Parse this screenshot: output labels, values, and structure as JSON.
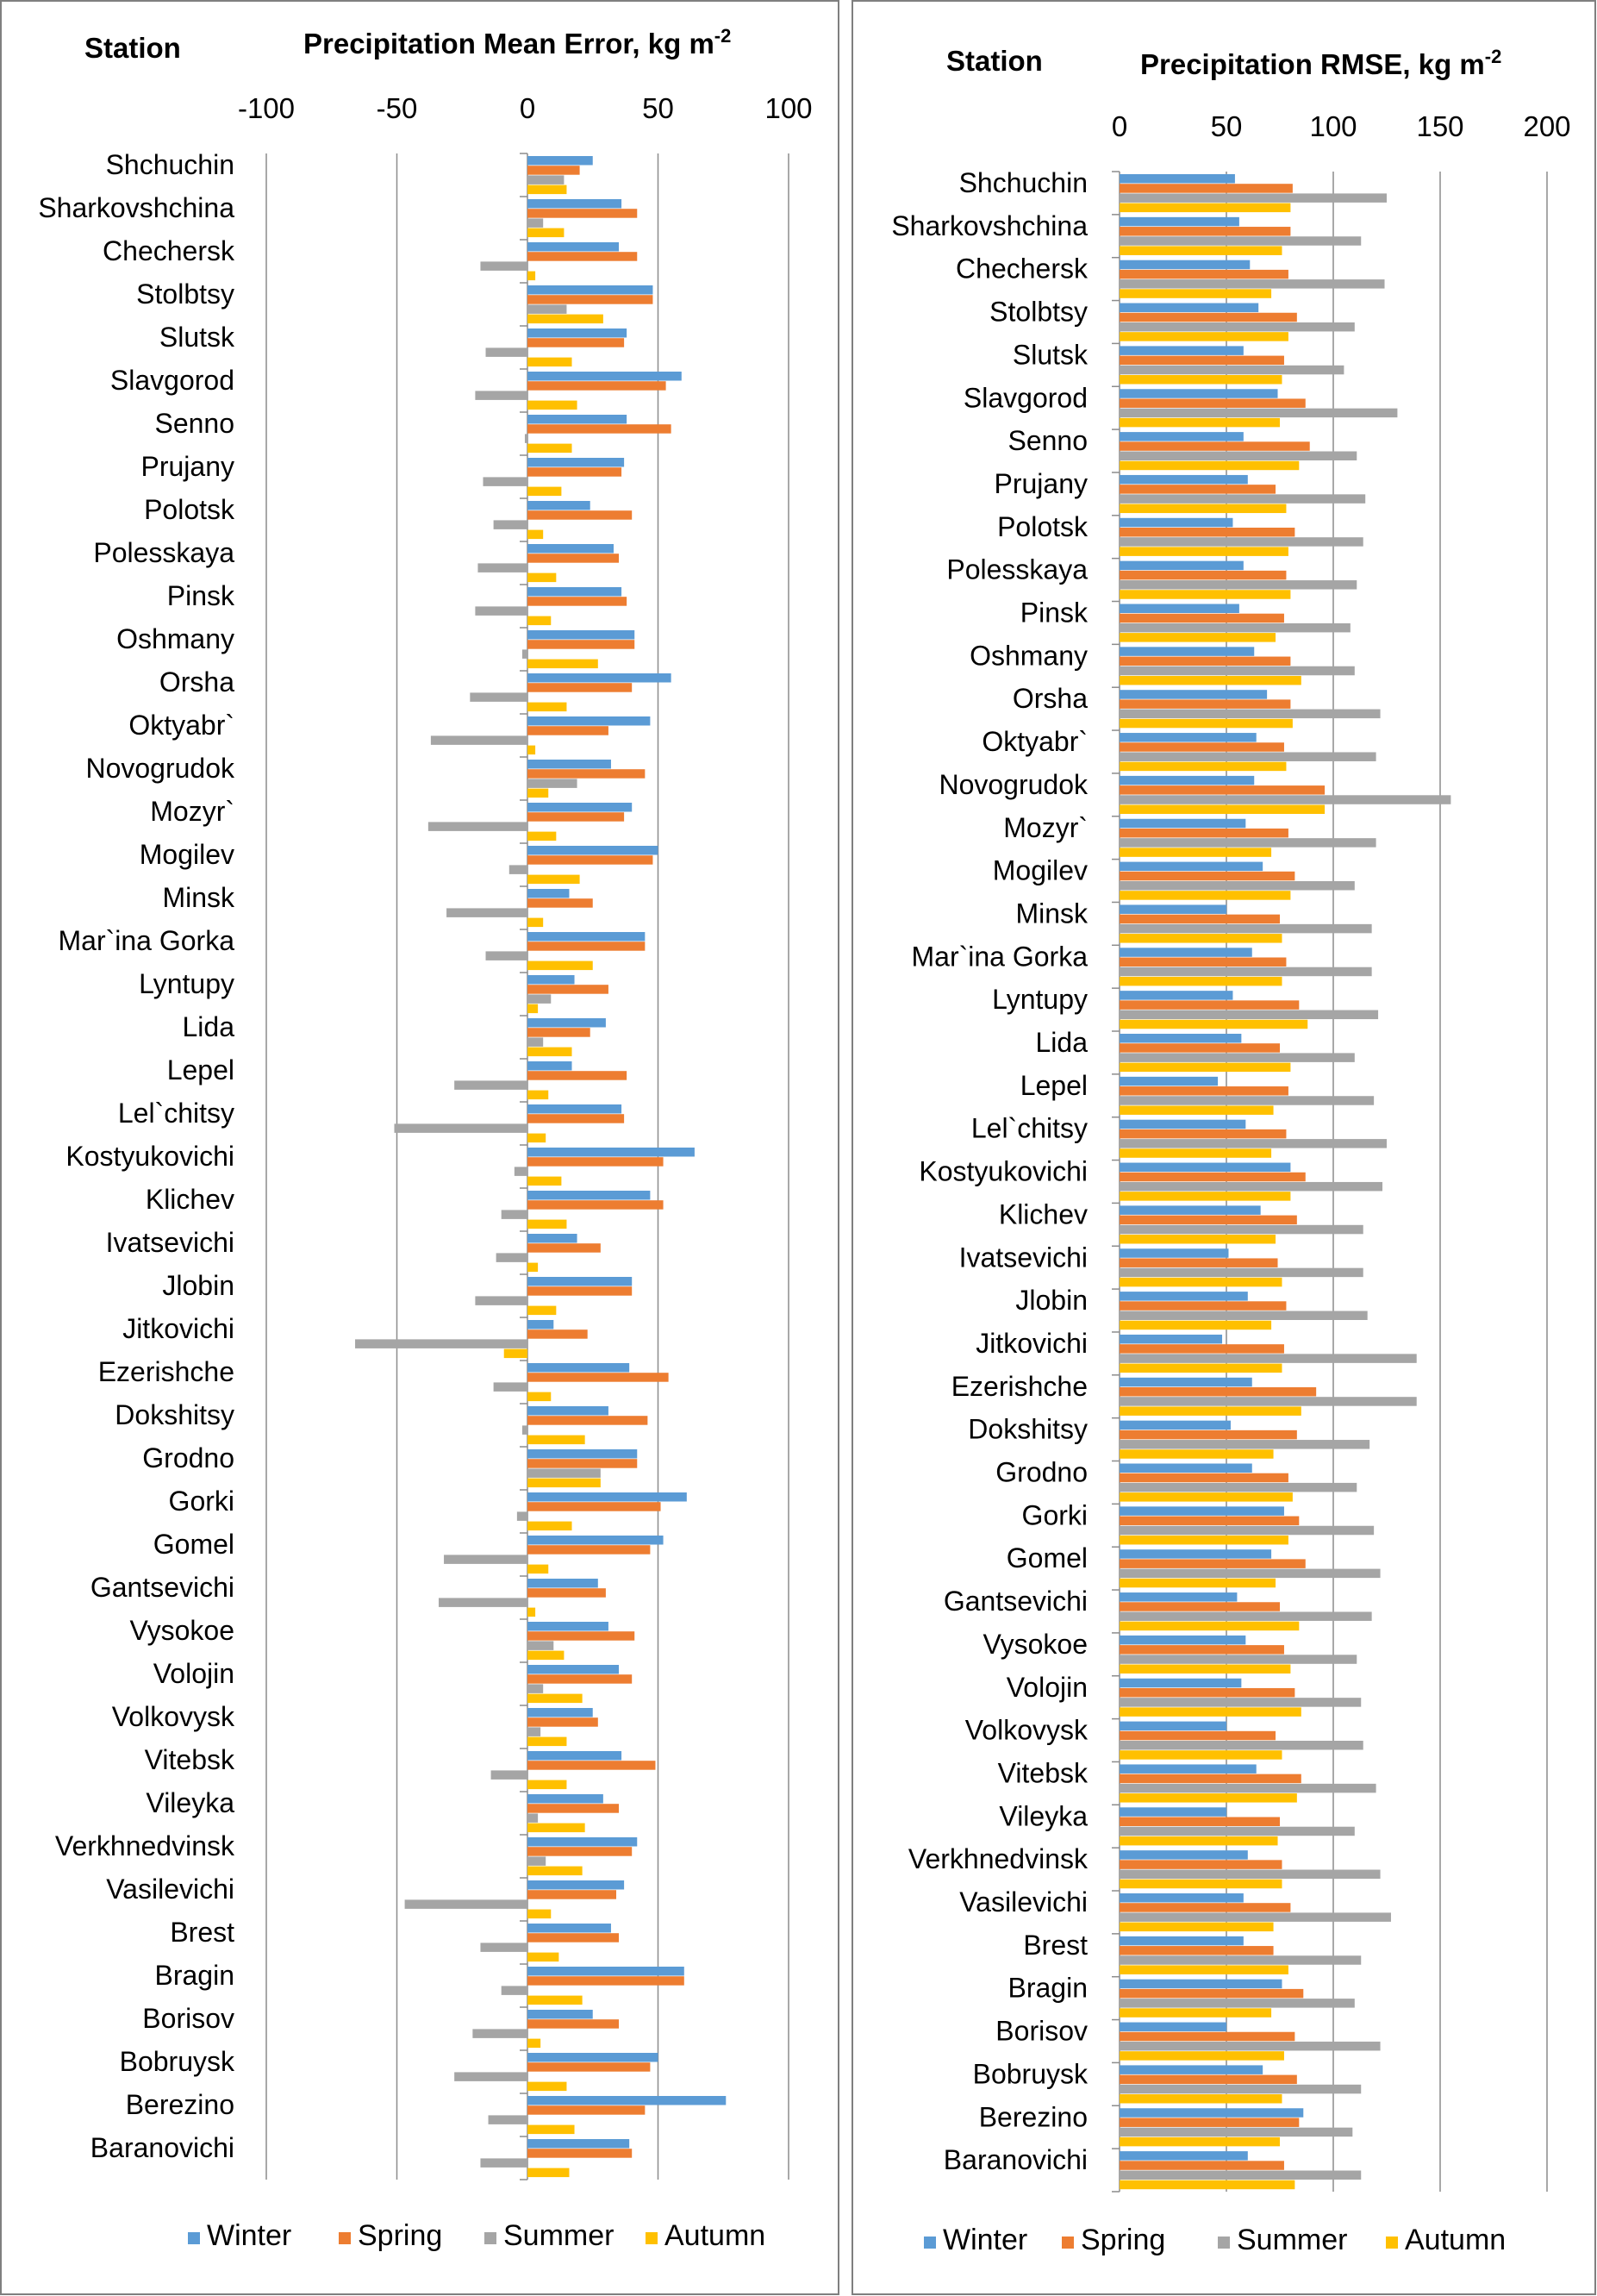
{
  "colors": {
    "Winter": "#5b9bd5",
    "Spring": "#ed7d31",
    "Summer": "#a5a5a5",
    "Autumn": "#ffc000"
  },
  "chart_data": [
    {
      "type": "bar",
      "orientation": "horizontal",
      "station_header": "Station",
      "title": "Precipitation Mean Error, kg m",
      "title_sup": "-2",
      "xlim": [
        -100,
        100
      ],
      "ticks": [
        "-100",
        "-50",
        "0",
        "50",
        "100"
      ],
      "tick_values": [
        -100,
        -50,
        0,
        50,
        100
      ],
      "grid": true,
      "legend_position": "bottom",
      "categories": [
        "Shchuchin",
        "Sharkovshchina",
        "Chechersk",
        "Stolbtsy",
        "Slutsk",
        "Slavgorod",
        "Senno",
        "Prujany",
        "Polotsk",
        "Polesskaya",
        "Pinsk",
        "Oshmany",
        "Orsha",
        "Oktyabr`",
        "Novogrudok",
        "Mozyr`",
        "Mogilev",
        "Minsk",
        "Mar`ina Gorka",
        "Lyntupy",
        "Lida",
        "Lepel",
        "Lel`chitsy",
        "Kostyukovichi",
        "Klichev",
        "Ivatsevichi",
        "Jlobin",
        "Jitkovichi",
        "Ezerishche",
        "Dokshitsy",
        "Grodno",
        "Gorki",
        "Gomel",
        "Gantsevichi",
        "Vysokoe",
        "Volojin",
        "Volkovysk",
        "Vitebsk",
        "Vileyka",
        "Verkhnedvinsk",
        "Vasilevichi",
        "Brest",
        "Bragin",
        "Borisov",
        "Bobruysk",
        "Berezino",
        "Baranovichi"
      ],
      "series": [
        {
          "name": "Winter",
          "values": [
            25,
            36,
            35,
            48,
            38,
            59,
            38,
            37,
            24,
            33,
            36,
            41,
            55,
            47,
            32,
            40,
            50,
            16,
            45,
            18,
            30,
            17,
            36,
            64,
            47,
            19,
            40,
            10,
            39,
            31,
            42,
            61,
            52,
            27,
            31,
            35,
            25,
            36,
            29,
            42,
            37,
            32,
            60,
            25,
            50,
            76,
            39
          ]
        },
        {
          "name": "Spring",
          "values": [
            20,
            42,
            42,
            48,
            37,
            53,
            55,
            36,
            40,
            35,
            38,
            41,
            40,
            31,
            45,
            37,
            48,
            25,
            45,
            31,
            24,
            38,
            37,
            52,
            52,
            28,
            40,
            23,
            54,
            46,
            42,
            51,
            47,
            30,
            41,
            40,
            27,
            49,
            35,
            40,
            34,
            35,
            60,
            35,
            47,
            45,
            40
          ]
        },
        {
          "name": "Summer",
          "values": [
            14,
            6,
            -18,
            15,
            -16,
            -20,
            -1,
            -17,
            -13,
            -19,
            -20,
            -2,
            -22,
            -37,
            19,
            -38,
            -7,
            -31,
            -16,
            9,
            6,
            -28,
            -51,
            -5,
            -10,
            -12,
            -20,
            -66,
            -13,
            -2,
            28,
            -4,
            -32,
            -34,
            10,
            6,
            5,
            -14,
            4,
            7,
            -47,
            -18,
            -10,
            -21,
            -28,
            -15,
            -18
          ]
        },
        {
          "name": "Autumn",
          "values": [
            15,
            14,
            3,
            29,
            17,
            19,
            17,
            13,
            6,
            11,
            9,
            27,
            15,
            3,
            8,
            11,
            20,
            6,
            25,
            4,
            17,
            8,
            7,
            13,
            15,
            4,
            11,
            -9,
            9,
            22,
            28,
            17,
            8,
            3,
            14,
            21,
            15,
            15,
            22,
            21,
            9,
            12,
            21,
            5,
            15,
            18,
            16
          ]
        }
      ],
      "legend": [
        "Winter",
        "Spring",
        "Summer",
        "Autumn"
      ]
    },
    {
      "type": "bar",
      "orientation": "horizontal",
      "station_header": "Station",
      "title": "Precipitation RMSE, kg m",
      "title_sup": "-2",
      "xlim": [
        0,
        200
      ],
      "ticks": [
        "0",
        "50",
        "100",
        "150",
        "200"
      ],
      "tick_values": [
        0,
        50,
        100,
        150,
        200
      ],
      "grid": true,
      "legend_position": "bottom",
      "categories": [
        "Shchuchin",
        "Sharkovshchina",
        "Chechersk",
        "Stolbtsy",
        "Slutsk",
        "Slavgorod",
        "Senno",
        "Prujany",
        "Polotsk",
        "Polesskaya",
        "Pinsk",
        "Oshmany",
        "Orsha",
        "Oktyabr`",
        "Novogrudok",
        "Mozyr`",
        "Mogilev",
        "Minsk",
        "Mar`ina Gorka",
        "Lyntupy",
        "Lida",
        "Lepel",
        "Lel`chitsy",
        "Kostyukovichi",
        "Klichev",
        "Ivatsevichi",
        "Jlobin",
        "Jitkovichi",
        "Ezerishche",
        "Dokshitsy",
        "Grodno",
        "Gorki",
        "Gomel",
        "Gantsevichi",
        "Vysokoe",
        "Volojin",
        "Volkovysk",
        "Vitebsk",
        "Vileyka",
        "Verkhnedvinsk",
        "Vasilevichi",
        "Brest",
        "Bragin",
        "Borisov",
        "Bobruysk",
        "Berezino",
        "Baranovichi"
      ],
      "series": [
        {
          "name": "Winter",
          "values": [
            54,
            56,
            61,
            65,
            58,
            74,
            58,
            60,
            53,
            58,
            56,
            63,
            69,
            64,
            63,
            59,
            67,
            50,
            62,
            53,
            57,
            46,
            59,
            80,
            66,
            51,
            60,
            48,
            62,
            52,
            62,
            77,
            71,
            55,
            59,
            57,
            50,
            64,
            50,
            60,
            58,
            58,
            76,
            50,
            67,
            86,
            60
          ]
        },
        {
          "name": "Spring",
          "values": [
            81,
            80,
            79,
            83,
            77,
            87,
            89,
            73,
            82,
            78,
            77,
            80,
            80,
            77,
            96,
            79,
            82,
            75,
            78,
            84,
            75,
            79,
            78,
            87,
            83,
            74,
            78,
            77,
            92,
            83,
            79,
            84,
            87,
            75,
            77,
            82,
            73,
            85,
            75,
            76,
            80,
            72,
            86,
            82,
            83,
            84,
            77
          ]
        },
        {
          "name": "Summer",
          "values": [
            125,
            113,
            124,
            110,
            105,
            130,
            111,
            115,
            114,
            111,
            108,
            110,
            122,
            120,
            155,
            120,
            110,
            118,
            118,
            121,
            110,
            119,
            125,
            123,
            114,
            114,
            116,
            139,
            139,
            117,
            111,
            119,
            122,
            118,
            111,
            113,
            114,
            120,
            110,
            122,
            127,
            113,
            110,
            122,
            113,
            109,
            113
          ]
        },
        {
          "name": "Autumn",
          "values": [
            80,
            76,
            71,
            79,
            76,
            75,
            84,
            78,
            79,
            80,
            73,
            85,
            81,
            78,
            96,
            71,
            80,
            76,
            76,
            88,
            80,
            72,
            71,
            80,
            73,
            76,
            71,
            76,
            85,
            72,
            81,
            79,
            73,
            84,
            80,
            85,
            76,
            83,
            74,
            76,
            72,
            79,
            71,
            77,
            76,
            75,
            82
          ]
        }
      ],
      "legend": [
        "Winter",
        "Spring",
        "Summer",
        "Autumn"
      ]
    }
  ]
}
